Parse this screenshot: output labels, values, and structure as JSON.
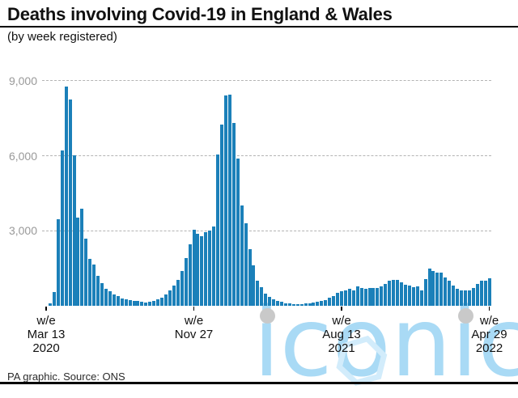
{
  "header": {
    "title": "Deaths involving Covid-19 in England & Wales",
    "subtitle": "(by week registered)"
  },
  "footer": {
    "credit": "PA graphic. Source: ONS"
  },
  "watermark": {
    "text": "iconic",
    "text_color": "#a9daf5",
    "dot_color": "#c9c9c9",
    "hexagon_color": "#d2ecfb"
  },
  "chart_data": {
    "type": "bar",
    "title": "Deaths involving Covid-19 in England & Wales",
    "subtitle": "(by week registered)",
    "xlabel": "",
    "ylabel": "",
    "x_unit": "week ending (weekly bars)",
    "x_start": "w/e Mar 13 2020",
    "x_end": "w/e Apr 29 2022",
    "ylim": [
      0,
      9000
    ],
    "grid": "dashed horizontal",
    "bar_color": "#1b80b9",
    "gridline_color": "#b4b4b4",
    "y_ticks": [
      {
        "value": 3000,
        "label": "3,000"
      },
      {
        "value": 6000,
        "label": "6,000"
      },
      {
        "value": 9000,
        "label": "9,000"
      }
    ],
    "x_ticks": [
      {
        "index": 0,
        "lines": "w/e\nMar 13\n2020"
      },
      {
        "index": 37,
        "lines": "w/e\nNov 27"
      },
      {
        "index": 74,
        "lines": "w/e\nAug 13\n2021"
      },
      {
        "index": 111,
        "lines": "w/e\nApr 29\n2022"
      }
    ],
    "values": [
      5,
      105,
      540,
      3475,
      6215,
      8760,
      8240,
      6035,
      3515,
      3870,
      2690,
      1880,
      1660,
      1190,
      920,
      680,
      595,
      445,
      380,
      290,
      270,
      230,
      205,
      195,
      160,
      140,
      150,
      185,
      250,
      325,
      455,
      600,
      810,
      1050,
      1400,
      1895,
      2470,
      3040,
      2895,
      2780,
      2955,
      3010,
      3180,
      6060,
      7245,
      8420,
      8435,
      7320,
      5900,
      4010,
      3300,
      2250,
      1610,
      1005,
      755,
      490,
      365,
      260,
      205,
      155,
      110,
      92,
      80,
      70,
      65,
      85,
      100,
      120,
      150,
      195,
      240,
      330,
      390,
      525,
      570,
      605,
      670,
      620,
      780,
      725,
      695,
      720,
      700,
      725,
      790,
      865,
      995,
      1020,
      1025,
      940,
      855,
      825,
      745,
      765,
      605,
      1055,
      1485,
      1380,
      1325,
      1325,
      1135,
      995,
      800,
      685,
      610,
      605,
      630,
      700,
      870,
      990,
      1005,
      1090
    ]
  }
}
